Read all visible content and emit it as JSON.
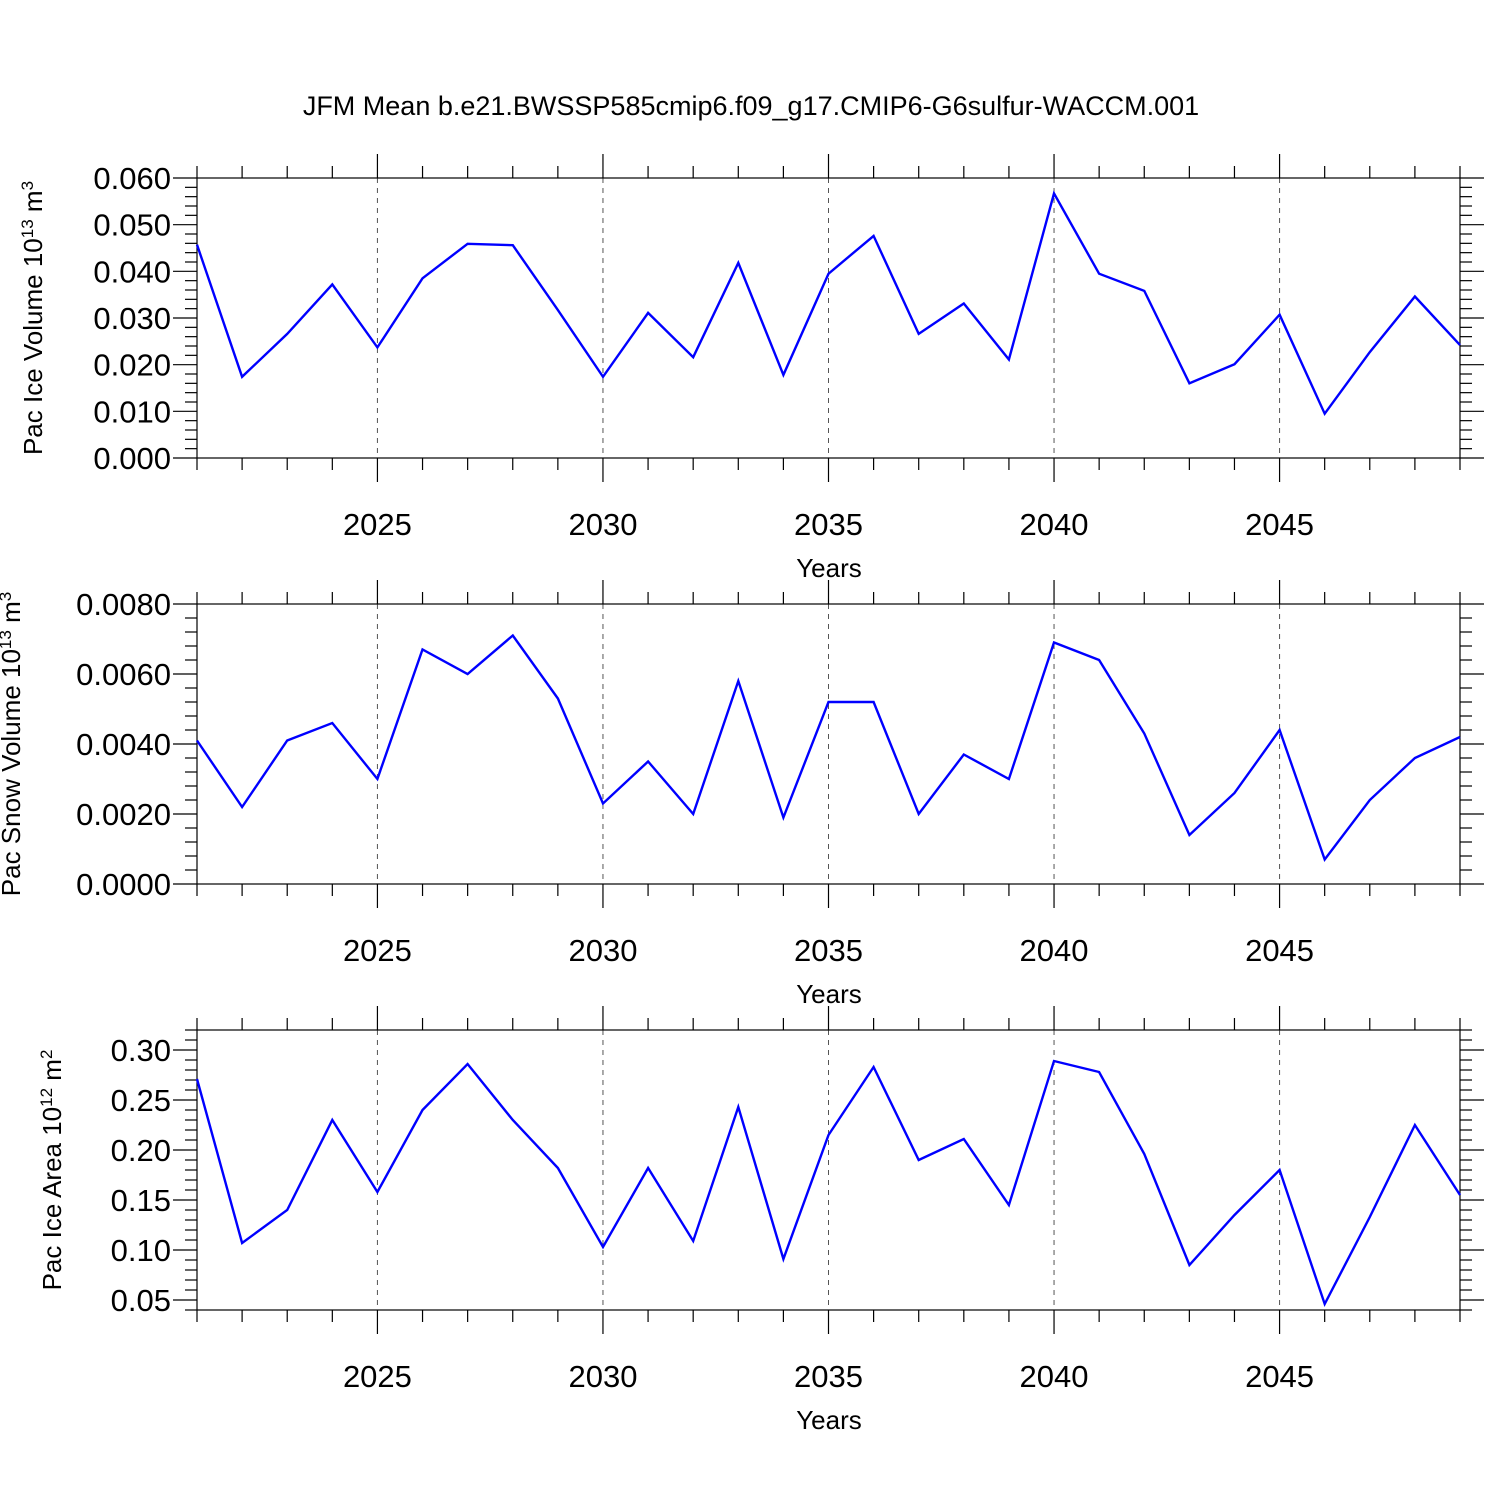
{
  "title": "JFM Mean b.e21.BWSSP585cmip6.f09_g17.CMIP6-G6sulfur-WACCM.001",
  "colors": {
    "line": "#0000ff",
    "axis": "#000000",
    "grid": "#555555"
  },
  "chart_data": [
    {
      "type": "line",
      "ylabel": {
        "text": "Pac Ice Volume 10",
        "exponent": "13",
        "unit": " m",
        "unit_exponent": "3"
      },
      "xlabel": "Years",
      "xlim": [
        2021,
        2049
      ],
      "ylim": [
        0.0,
        0.06
      ],
      "yticks": [
        0.0,
        0.01,
        0.02,
        0.03,
        0.04,
        0.05,
        0.06
      ],
      "ytick_labels": [
        "0.000",
        "0.010",
        "0.020",
        "0.030",
        "0.040",
        "0.050",
        "0.060"
      ],
      "xticks": [
        2025,
        2030,
        2035,
        2040,
        2045
      ],
      "xtick_labels": [
        "2025",
        "2030",
        "2035",
        "2040",
        "2045"
      ],
      "grid": "vertical dashed at labeled years",
      "x": [
        2021,
        2022,
        2023,
        2024,
        2025,
        2026,
        2027,
        2028,
        2029,
        2030,
        2031,
        2032,
        2033,
        2034,
        2035,
        2036,
        2037,
        2038,
        2039,
        2040,
        2041,
        2042,
        2043,
        2044,
        2045,
        2046,
        2047,
        2048,
        2049
      ],
      "values": [
        0.0457,
        0.0174,
        0.0266,
        0.0372,
        0.0237,
        0.0385,
        0.0459,
        0.0456,
        0.0317,
        0.0174,
        0.0311,
        0.0216,
        0.0418,
        0.0178,
        0.0395,
        0.0476,
        0.0266,
        0.0331,
        0.0211,
        0.0567,
        0.0395,
        0.0358,
        0.016,
        0.0201,
        0.0307,
        0.0095,
        0.0227,
        0.0346,
        0.0242
      ]
    },
    {
      "type": "line",
      "ylabel": {
        "text": "Pac Snow Volume 10",
        "exponent": "13",
        "unit": " m",
        "unit_exponent": "3"
      },
      "xlabel": "Years",
      "xlim": [
        2021,
        2049
      ],
      "ylim": [
        0.0,
        0.008
      ],
      "yticks": [
        0.0,
        0.002,
        0.004,
        0.006,
        0.008
      ],
      "ytick_labels": [
        "0.0000",
        "0.0020",
        "0.0040",
        "0.0060",
        "0.0080"
      ],
      "xticks": [
        2025,
        2030,
        2035,
        2040,
        2045
      ],
      "xtick_labels": [
        "2025",
        "2030",
        "2035",
        "2040",
        "2045"
      ],
      "grid": "vertical dashed at labeled years",
      "x": [
        2021,
        2022,
        2023,
        2024,
        2025,
        2026,
        2027,
        2028,
        2029,
        2030,
        2031,
        2032,
        2033,
        2034,
        2035,
        2036,
        2037,
        2038,
        2039,
        2040,
        2041,
        2042,
        2043,
        2044,
        2045,
        2046,
        2047,
        2048,
        2049
      ],
      "values": [
        0.0041,
        0.0022,
        0.0041,
        0.0046,
        0.003,
        0.0067,
        0.006,
        0.0071,
        0.0053,
        0.0023,
        0.0035,
        0.002,
        0.0058,
        0.0019,
        0.0052,
        0.0052,
        0.002,
        0.0037,
        0.003,
        0.0069,
        0.0064,
        0.0043,
        0.0014,
        0.0026,
        0.0044,
        0.0007,
        0.0024,
        0.0036,
        0.0042
      ]
    },
    {
      "type": "line",
      "ylabel": {
        "text": "Pac Ice Area 10",
        "exponent": "12",
        "unit": " m",
        "unit_exponent": "2"
      },
      "xlabel": "Years",
      "xlim": [
        2021,
        2049
      ],
      "ylim": [
        0.04,
        0.32
      ],
      "yticks": [
        0.05,
        0.1,
        0.15,
        0.2,
        0.25,
        0.3
      ],
      "ytick_labels": [
        "0.05",
        "0.10",
        "0.15",
        "0.20",
        "0.25",
        "0.30"
      ],
      "xticks": [
        2025,
        2030,
        2035,
        2040,
        2045
      ],
      "xtick_labels": [
        "2025",
        "2030",
        "2035",
        "2040",
        "2045"
      ],
      "grid": "vertical dashed at labeled years",
      "x": [
        2021,
        2022,
        2023,
        2024,
        2025,
        2026,
        2027,
        2028,
        2029,
        2030,
        2031,
        2032,
        2033,
        2034,
        2035,
        2036,
        2037,
        2038,
        2039,
        2040,
        2041,
        2042,
        2043,
        2044,
        2045,
        2046,
        2047,
        2048,
        2049
      ],
      "values": [
        0.271,
        0.107,
        0.14,
        0.23,
        0.158,
        0.24,
        0.286,
        0.23,
        0.182,
        0.103,
        0.182,
        0.109,
        0.243,
        0.091,
        0.215,
        0.283,
        0.19,
        0.211,
        0.145,
        0.289,
        0.278,
        0.196,
        0.085,
        0.135,
        0.18,
        0.046,
        0.133,
        0.225,
        0.155
      ]
    }
  ]
}
